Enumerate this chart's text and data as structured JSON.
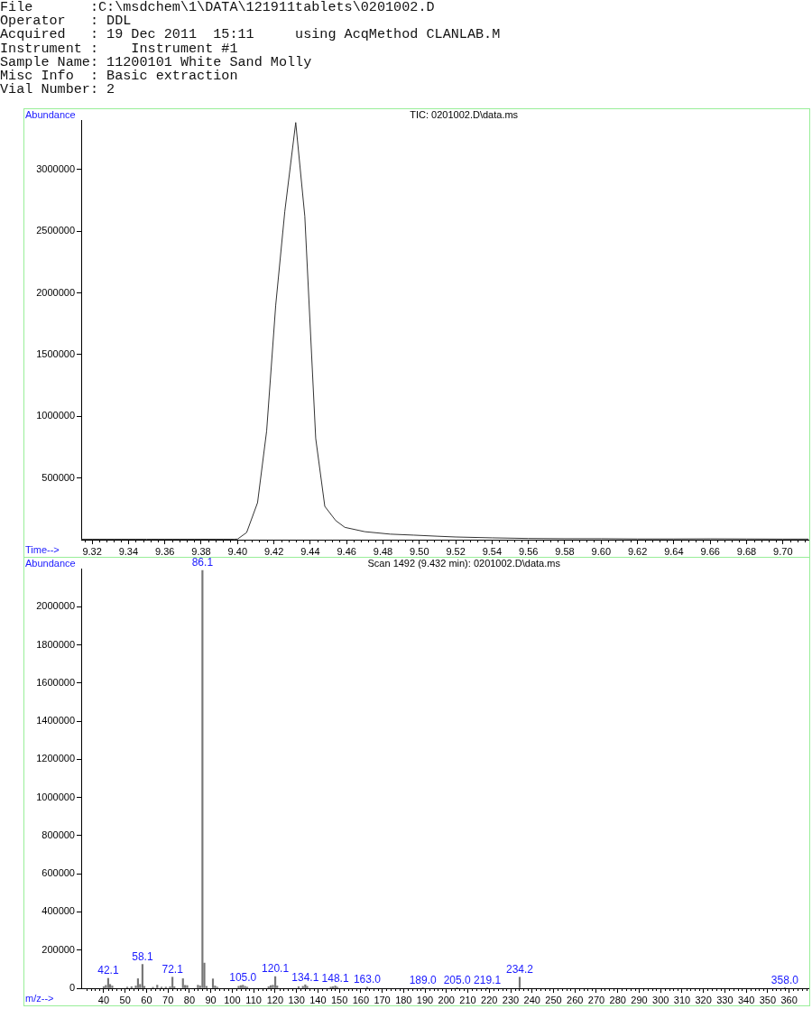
{
  "chart_data": [
    {
      "type": "line",
      "title": "TIC: 0201002.D\\data.ms",
      "xlabel": "Time-->",
      "ylabel": "Abundance",
      "annotations": [
        "File       :C:\\msdchem\\1\\DATA\\121911tablets\\0201002.D",
        "Operator   : DDL",
        "Acquired   : 19 Dec 2011  15:11     using AcqMethod CLANLAB.M",
        "Instrument :    Instrument #1",
        "Sample Name: 11200101 White Sand Molly",
        "Misc Info  : Basic extraction",
        "Vial Number: 2"
      ],
      "x": [
        9.314,
        9.35,
        9.38,
        9.398,
        9.4,
        9.405,
        9.411,
        9.416,
        9.421,
        9.426,
        9.432,
        9.437,
        9.443,
        9.448,
        9.454,
        9.459,
        9.47,
        9.484,
        9.497,
        9.51,
        9.52,
        9.54,
        9.56,
        9.58,
        9.6,
        9.62,
        9.64,
        9.66,
        9.68,
        9.7,
        9.714
      ],
      "values": [
        4000,
        4000,
        4000,
        4000,
        5000,
        58000,
        300000,
        880000,
        1900000,
        2660000,
        3380000,
        2620000,
        820000,
        270000,
        155000,
        100000,
        65000,
        45000,
        37000,
        28000,
        22000,
        15000,
        10000,
        8000,
        8000,
        6000,
        6000,
        7000,
        6000,
        5000,
        5000
      ],
      "color": "#333333",
      "marker": "none",
      "xlim": [
        9.314,
        9.714
      ],
      "xticks": [
        {
          "value": 9.316,
          "label": null
        },
        9.32,
        {
          "value": 9.324,
          "label": null
        },
        {
          "value": 9.328,
          "label": null
        },
        {
          "value": 9.332,
          "label": null
        },
        {
          "value": 9.336,
          "label": null
        },
        9.34,
        {
          "value": 9.344,
          "label": null
        },
        {
          "value": 9.348,
          "label": null
        },
        {
          "value": 9.352,
          "label": null
        },
        {
          "value": 9.356,
          "label": null
        },
        9.36,
        {
          "value": 9.364,
          "label": null
        },
        {
          "value": 9.368,
          "label": null
        },
        {
          "value": 9.372,
          "label": null
        },
        {
          "value": 9.376,
          "label": null
        },
        9.38,
        {
          "value": 9.384,
          "label": null
        },
        {
          "value": 9.388,
          "label": null
        },
        {
          "value": 9.392,
          "label": null
        },
        {
          "value": 9.396,
          "label": null
        },
        {
          "value": 9.4,
          "label": "9.40"
        },
        {
          "value": 9.404,
          "label": null
        },
        {
          "value": 9.408,
          "label": null
        },
        {
          "value": 9.412,
          "label": null
        },
        {
          "value": 9.416,
          "label": null
        },
        9.42,
        {
          "value": 9.424,
          "label": null
        },
        {
          "value": 9.428,
          "label": null
        },
        {
          "value": 9.432,
          "label": null
        },
        {
          "value": 9.436,
          "label": null
        },
        9.44,
        {
          "value": 9.444,
          "label": null
        },
        {
          "value": 9.448,
          "label": null
        },
        {
          "value": 9.452,
          "label": null
        },
        {
          "value": 9.456,
          "label": null
        },
        9.46,
        {
          "value": 9.464,
          "label": null
        },
        {
          "value": 9.468,
          "label": null
        },
        {
          "value": 9.472,
          "label": null
        },
        {
          "value": 9.476,
          "label": null
        },
        9.48,
        {
          "value": 9.484,
          "label": null
        },
        {
          "value": 9.488,
          "label": null
        },
        {
          "value": 9.492,
          "label": null
        },
        {
          "value": 9.496,
          "label": null
        },
        {
          "value": 9.5,
          "label": "9.50"
        },
        {
          "value": 9.504,
          "label": null
        },
        {
          "value": 9.508,
          "label": null
        },
        {
          "value": 9.512,
          "label": null
        },
        {
          "value": 9.516,
          "label": null
        },
        9.52,
        {
          "value": 9.524,
          "label": null
        },
        {
          "value": 9.528,
          "label": null
        },
        {
          "value": 9.532,
          "label": null
        },
        {
          "value": 9.536,
          "label": null
        },
        9.54,
        {
          "value": 9.544,
          "label": null
        },
        {
          "value": 9.548,
          "label": null
        },
        {
          "value": 9.552,
          "label": null
        },
        {
          "value": 9.556,
          "label": null
        },
        9.56,
        {
          "value": 9.564,
          "label": null
        },
        {
          "value": 9.568,
          "label": null
        },
        {
          "value": 9.572,
          "label": null
        },
        {
          "value": 9.576,
          "label": null
        },
        9.58,
        {
          "value": 9.584,
          "label": null
        },
        {
          "value": 9.588,
          "label": null
        },
        {
          "value": 9.592,
          "label": null
        },
        {
          "value": 9.596,
          "label": null
        },
        {
          "value": 9.6,
          "label": "9.60"
        },
        {
          "value": 9.604,
          "label": null
        },
        {
          "value": 9.608,
          "label": null
        },
        {
          "value": 9.612,
          "label": null
        },
        {
          "value": 9.616,
          "label": null
        },
        9.62,
        {
          "value": 9.624,
          "label": null
        },
        {
          "value": 9.628,
          "label": null
        },
        {
          "value": 9.632,
          "label": null
        },
        {
          "value": 9.636,
          "label": null
        },
        9.64,
        {
          "value": 9.644,
          "label": null
        },
        {
          "value": 9.648,
          "label": null
        },
        {
          "value": 9.652,
          "label": null
        },
        {
          "value": 9.656,
          "label": null
        },
        9.66,
        {
          "value": 9.664,
          "label": null
        },
        {
          "value": 9.668,
          "label": null
        },
        {
          "value": 9.672,
          "label": null
        },
        {
          "value": 9.676,
          "label": null
        },
        9.68,
        {
          "value": 9.684,
          "label": null
        },
        {
          "value": 9.688,
          "label": null
        },
        {
          "value": 9.692,
          "label": null
        },
        {
          "value": 9.696,
          "label": null
        },
        {
          "value": 9.7,
          "label": "9.70"
        },
        {
          "value": 9.704,
          "label": null
        },
        {
          "value": 9.708,
          "label": null
        },
        {
          "value": 9.712,
          "label": null
        }
      ],
      "ylim": [
        0,
        3400000
      ],
      "yticks": [
        500000,
        1000000,
        1500000,
        2000000,
        2500000,
        3000000
      ]
    },
    {
      "type": "bar",
      "title": "Scan 1492 (9.432 min): 0201002.D\\data.ms",
      "xlabel": "m/z-->",
      "ylabel": "Abundance",
      "x": [
        40,
        41,
        42.1,
        43,
        44,
        51,
        53,
        55,
        56,
        57,
        58.1,
        59,
        63,
        65,
        67,
        69,
        71,
        72.1,
        73,
        77,
        78,
        79,
        84,
        85,
        86.1,
        87,
        88,
        91,
        92,
        93,
        103,
        104,
        105,
        106,
        107,
        117,
        118,
        119,
        120.1,
        121,
        131,
        133,
        134.1,
        135,
        146,
        147,
        148.1,
        149,
        163,
        189,
        205,
        219.1,
        234.2,
        358
      ],
      "values": [
        8000,
        15000,
        52000,
        20000,
        12000,
        6000,
        8000,
        12000,
        50000,
        20000,
        125000,
        10000,
        5000,
        16000,
        6000,
        6000,
        8000,
        58000,
        8000,
        50000,
        15000,
        14000,
        16000,
        12000,
        2190000,
        132000,
        10000,
        49000,
        12000,
        6000,
        10000,
        14000,
        16000,
        10000,
        6000,
        8000,
        14000,
        16000,
        61000,
        12000,
        8000,
        10000,
        18000,
        10000,
        6000,
        8000,
        12000,
        6000,
        6000,
        3000,
        3000,
        3000,
        58000,
        3000
      ],
      "color": "#777777",
      "annotations": [
        {
          "text": "42.1",
          "x": 42.1,
          "y": 52000
        },
        {
          "text": "58.1",
          "x": 58.1,
          "y": 125000
        },
        {
          "text": "72.1",
          "x": 72.1,
          "y": 58000
        },
        {
          "text": "86.1",
          "x": 86.1,
          "y": 2190000
        },
        {
          "text": "105.0",
          "x": 105,
          "y": 16000
        },
        {
          "text": "120.1",
          "x": 120.1,
          "y": 61000
        },
        {
          "text": "134.1",
          "x": 134.1,
          "y": 18000
        },
        {
          "text": "148.1",
          "x": 148.1,
          "y": 12000
        },
        {
          "text": "163.0",
          "x": 163,
          "y": 6000
        },
        {
          "text": "189.0",
          "x": 189,
          "y": 3000
        },
        {
          "text": "205.0",
          "x": 205,
          "y": 3000
        },
        {
          "text": "219.1",
          "x": 219.1,
          "y": 3000
        },
        {
          "text": "234.2",
          "x": 234.2,
          "y": 58000
        },
        {
          "text": "358.0",
          "x": 358,
          "y": 3000
        }
      ],
      "xlim": [
        29.5,
        369
      ],
      "xticks": [
        {
          "value": 32,
          "label": null
        },
        {
          "value": 34,
          "label": null
        },
        {
          "value": 36,
          "label": null
        },
        {
          "value": 38,
          "label": null
        },
        40,
        {
          "value": 42,
          "label": null
        },
        {
          "value": 44,
          "label": null
        },
        {
          "value": 46,
          "label": null
        },
        {
          "value": 48,
          "label": null
        },
        50,
        {
          "value": 52,
          "label": null
        },
        {
          "value": 54,
          "label": null
        },
        {
          "value": 56,
          "label": null
        },
        {
          "value": 58,
          "label": null
        },
        60,
        {
          "value": 62,
          "label": null
        },
        {
          "value": 64,
          "label": null
        },
        {
          "value": 66,
          "label": null
        },
        {
          "value": 68,
          "label": null
        },
        70,
        {
          "value": 72,
          "label": null
        },
        {
          "value": 74,
          "label": null
        },
        {
          "value": 76,
          "label": null
        },
        {
          "value": 78,
          "label": null
        },
        80,
        {
          "value": 82,
          "label": null
        },
        {
          "value": 84,
          "label": null
        },
        {
          "value": 86,
          "label": null
        },
        {
          "value": 88,
          "label": null
        },
        90,
        {
          "value": 92,
          "label": null
        },
        {
          "value": 94,
          "label": null
        },
        {
          "value": 96,
          "label": null
        },
        {
          "value": 98,
          "label": null
        },
        100,
        {
          "value": 102,
          "label": null
        },
        {
          "value": 104,
          "label": null
        },
        {
          "value": 106,
          "label": null
        },
        {
          "value": 108,
          "label": null
        },
        110,
        {
          "value": 112,
          "label": null
        },
        {
          "value": 114,
          "label": null
        },
        {
          "value": 116,
          "label": null
        },
        {
          "value": 118,
          "label": null
        },
        120,
        {
          "value": 122,
          "label": null
        },
        {
          "value": 124,
          "label": null
        },
        {
          "value": 126,
          "label": null
        },
        {
          "value": 128,
          "label": null
        },
        130,
        {
          "value": 132,
          "label": null
        },
        {
          "value": 134,
          "label": null
        },
        {
          "value": 136,
          "label": null
        },
        {
          "value": 138,
          "label": null
        },
        140,
        {
          "value": 142,
          "label": null
        },
        {
          "value": 144,
          "label": null
        },
        {
          "value": 146,
          "label": null
        },
        {
          "value": 148,
          "label": null
        },
        150,
        {
          "value": 152,
          "label": null
        },
        {
          "value": 154,
          "label": null
        },
        {
          "value": 156,
          "label": null
        },
        {
          "value": 158,
          "label": null
        },
        160,
        {
          "value": 162,
          "label": null
        },
        {
          "value": 164,
          "label": null
        },
        {
          "value": 166,
          "label": null
        },
        {
          "value": 168,
          "label": null
        },
        170,
        {
          "value": 172,
          "label": null
        },
        {
          "value": 174,
          "label": null
        },
        {
          "value": 176,
          "label": null
        },
        {
          "value": 178,
          "label": null
        },
        180,
        {
          "value": 182,
          "label": null
        },
        {
          "value": 184,
          "label": null
        },
        {
          "value": 186,
          "label": null
        },
        {
          "value": 188,
          "label": null
        },
        190,
        {
          "value": 192,
          "label": null
        },
        {
          "value": 194,
          "label": null
        },
        {
          "value": 196,
          "label": null
        },
        {
          "value": 198,
          "label": null
        },
        200,
        {
          "value": 202,
          "label": null
        },
        {
          "value": 204,
          "label": null
        },
        {
          "value": 206,
          "label": null
        },
        {
          "value": 208,
          "label": null
        },
        210,
        {
          "value": 212,
          "label": null
        },
        {
          "value": 214,
          "label": null
        },
        {
          "value": 216,
          "label": null
        },
        {
          "value": 218,
          "label": null
        },
        220,
        {
          "value": 222,
          "label": null
        },
        {
          "value": 224,
          "label": null
        },
        {
          "value": 226,
          "label": null
        },
        {
          "value": 228,
          "label": null
        },
        230,
        {
          "value": 232,
          "label": null
        },
        {
          "value": 234,
          "label": null
        },
        {
          "value": 236,
          "label": null
        },
        {
          "value": 238,
          "label": null
        },
        240,
        {
          "value": 242,
          "label": null
        },
        {
          "value": 244,
          "label": null
        },
        {
          "value": 246,
          "label": null
        },
        {
          "value": 248,
          "label": null
        },
        250,
        {
          "value": 252,
          "label": null
        },
        {
          "value": 254,
          "label": null
        },
        {
          "value": 256,
          "label": null
        },
        {
          "value": 258,
          "label": null
        },
        260,
        {
          "value": 262,
          "label": null
        },
        {
          "value": 264,
          "label": null
        },
        {
          "value": 266,
          "label": null
        },
        {
          "value": 268,
          "label": null
        },
        270,
        {
          "value": 272,
          "label": null
        },
        {
          "value": 274,
          "label": null
        },
        {
          "value": 276,
          "label": null
        },
        {
          "value": 278,
          "label": null
        },
        280,
        {
          "value": 282,
          "label": null
        },
        {
          "value": 284,
          "label": null
        },
        {
          "value": 286,
          "label": null
        },
        {
          "value": 288,
          "label": null
        },
        290,
        {
          "value": 292,
          "label": null
        },
        {
          "value": 294,
          "label": null
        },
        {
          "value": 296,
          "label": null
        },
        {
          "value": 298,
          "label": null
        },
        300,
        {
          "value": 302,
          "label": null
        },
        {
          "value": 304,
          "label": null
        },
        {
          "value": 306,
          "label": null
        },
        {
          "value": 308,
          "label": null
        },
        310,
        {
          "value": 312,
          "label": null
        },
        {
          "value": 314,
          "label": null
        },
        {
          "value": 316,
          "label": null
        },
        {
          "value": 318,
          "label": null
        },
        320,
        {
          "value": 322,
          "label": null
        },
        {
          "value": 324,
          "label": null
        },
        {
          "value": 326,
          "label": null
        },
        {
          "value": 328,
          "label": null
        },
        330,
        {
          "value": 332,
          "label": null
        },
        {
          "value": 334,
          "label": null
        },
        {
          "value": 336,
          "label": null
        },
        {
          "value": 338,
          "label": null
        },
        340,
        {
          "value": 342,
          "label": null
        },
        {
          "value": 344,
          "label": null
        },
        {
          "value": 346,
          "label": null
        },
        {
          "value": 348,
          "label": null
        },
        350,
        {
          "value": 352,
          "label": null
        },
        {
          "value": 354,
          "label": null
        },
        {
          "value": 356,
          "label": null
        },
        {
          "value": 358,
          "label": null
        },
        360,
        {
          "value": 362,
          "label": null
        },
        {
          "value": 364,
          "label": null
        },
        {
          "value": 366,
          "label": null
        },
        {
          "value": 368,
          "label": null
        }
      ],
      "ylim": [
        0,
        2200000
      ],
      "yticks": [
        0,
        200000,
        400000,
        600000,
        800000,
        1000000,
        1200000,
        1400000,
        1600000,
        1800000,
        2000000
      ]
    }
  ]
}
